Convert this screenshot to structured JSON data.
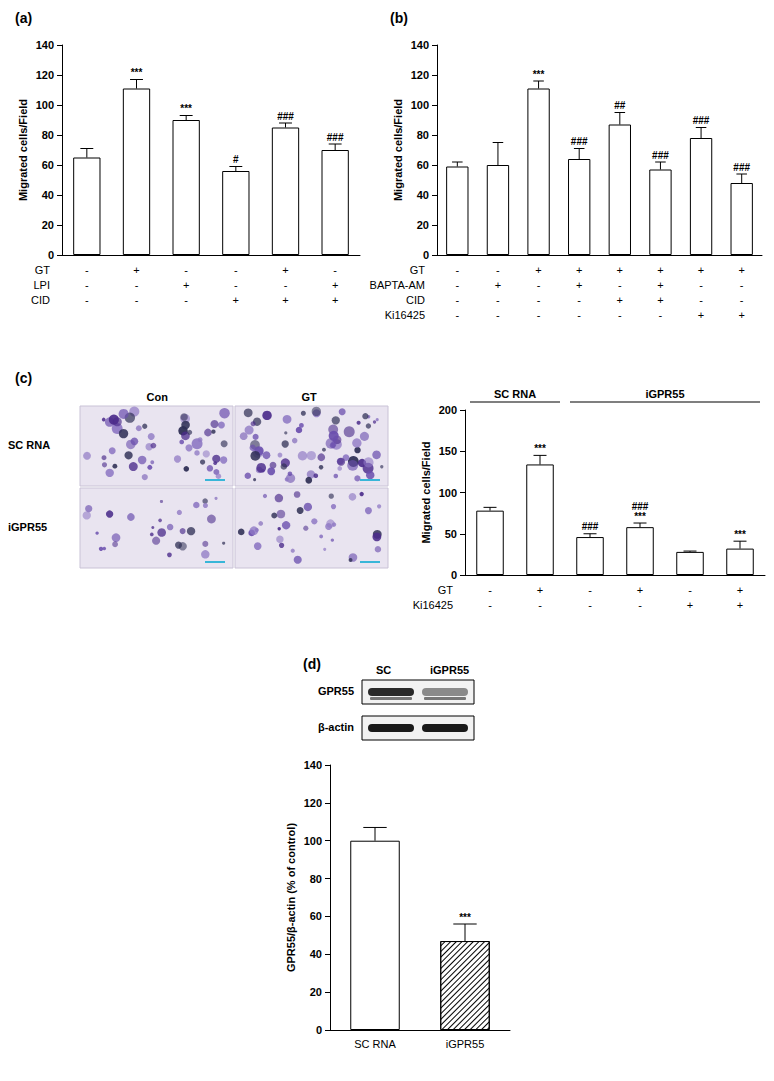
{
  "chart_data": [
    {
      "type": "bar",
      "title": "(a)",
      "y_label": "Migrated cells/Field",
      "categories": [
        null,
        null,
        null,
        null,
        null,
        null
      ],
      "values": [
        65,
        111,
        90,
        56,
        85,
        70
      ],
      "errors": [
        6,
        6,
        3,
        3,
        3,
        4
      ],
      "significance": [
        null,
        [
          "***"
        ],
        [
          "***"
        ],
        [
          "#"
        ],
        [
          "###"
        ],
        [
          "###"
        ]
      ],
      "conditions": [
        {
          "label": "GT",
          "values": [
            "-",
            "+",
            "-",
            "-",
            "+",
            "-"
          ]
        },
        {
          "label": "LPI",
          "values": [
            "-",
            "-",
            "+",
            "-",
            "-",
            "+"
          ]
        },
        {
          "label": "CID",
          "values": [
            "-",
            "-",
            "-",
            "+",
            "+",
            "+"
          ]
        }
      ],
      "color": "#ffffff",
      "ylim": [
        0,
        140
      ],
      "yticks": [
        0,
        20,
        40,
        60,
        80,
        100,
        120,
        140
      ],
      "grid": false
    },
    {
      "type": "bar",
      "title": "(b)",
      "y_label": "Migrated cells/Field",
      "categories": [
        null,
        null,
        null,
        null,
        null,
        null,
        null,
        null
      ],
      "values": [
        59,
        60,
        111,
        64,
        87,
        57,
        78,
        48
      ],
      "errors": [
        3,
        15,
        5,
        7,
        8,
        5,
        7,
        6
      ],
      "significance": [
        null,
        null,
        [
          "***"
        ],
        [
          "###"
        ],
        [
          "##"
        ],
        [
          "###"
        ],
        [
          "###"
        ],
        [
          "###"
        ]
      ],
      "conditions": [
        {
          "label": "GT",
          "values": [
            "-",
            "-",
            "+",
            "+",
            "+",
            "+",
            "+",
            "+"
          ]
        },
        {
          "label": "BAPTA-AM",
          "values": [
            "-",
            "+",
            "-",
            "+",
            "-",
            "+",
            "-",
            "-"
          ]
        },
        {
          "label": "CID",
          "values": [
            "-",
            "-",
            "-",
            "-",
            "+",
            "+",
            "-",
            "-"
          ]
        },
        {
          "label": "Ki16425",
          "values": [
            "-",
            "-",
            "-",
            "-",
            "-",
            "-",
            "+",
            "+"
          ]
        }
      ],
      "color": "#ffffff",
      "ylim": [
        0,
        140
      ],
      "yticks": [
        0,
        20,
        40,
        60,
        80,
        100,
        120,
        140
      ],
      "grid": false
    },
    {
      "type": "bar",
      "title": "(c)",
      "y_label": "Migrated cells/Field",
      "categories": [
        null,
        null,
        null,
        null,
        null,
        null
      ],
      "values": [
        78,
        134,
        46,
        58,
        28,
        32
      ],
      "errors": [
        4,
        11,
        4,
        5,
        1,
        9
      ],
      "significance": [
        null,
        [
          "***"
        ],
        [
          "###"
        ],
        [
          "###",
          "***"
        ],
        null,
        [
          "***"
        ]
      ],
      "groups": [
        {
          "label": "SC RNA",
          "from": 0,
          "to": 1
        },
        {
          "label": "iGPR55",
          "from": 2,
          "to": 5
        }
      ],
      "conditions": [
        {
          "label": "GT",
          "values": [
            "-",
            "+",
            "-",
            "+",
            "-",
            "+"
          ]
        },
        {
          "label": "Ki16425",
          "values": [
            "-",
            "-",
            "-",
            "-",
            "+",
            "+"
          ]
        }
      ],
      "color": "#ffffff",
      "ylim": [
        0,
        200
      ],
      "yticks": [
        0,
        50,
        100,
        150,
        200
      ],
      "grid": false
    },
    {
      "type": "bar",
      "title": "(d)",
      "y_label": "GPR55/β-actin (% of control)",
      "categories": [
        "SC RNA",
        "iGPR55"
      ],
      "values": [
        100,
        47
      ],
      "errors": [
        7,
        9
      ],
      "significance": [
        null,
        [
          "***"
        ]
      ],
      "color": "#ffffff",
      "ylim": [
        0,
        140
      ],
      "yticks": [
        0,
        20,
        40,
        60,
        80,
        100,
        120,
        140
      ],
      "grid": false
    }
  ],
  "micrographs": {
    "columns": [
      "Con",
      "GT"
    ],
    "rows": [
      "SC RNA",
      "iGPR55"
    ]
  },
  "blot": {
    "lanes": [
      "SC",
      "iGPR55"
    ],
    "bands": [
      "GPR55",
      "β-actin"
    ]
  }
}
